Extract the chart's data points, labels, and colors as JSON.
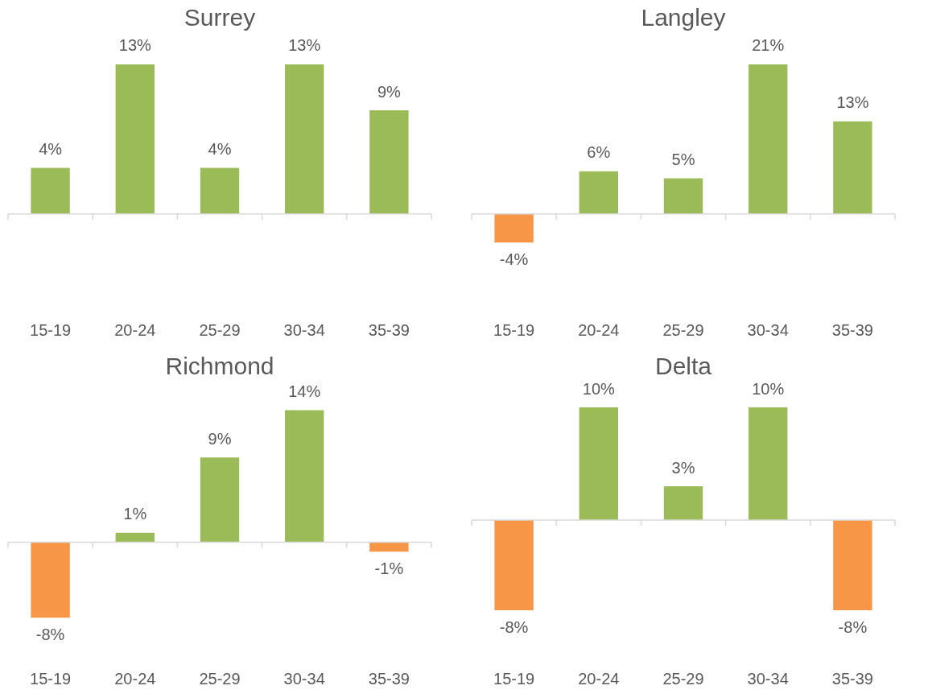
{
  "chart_data": [
    {
      "type": "bar",
      "title": "Surrey",
      "categories": [
        "15-19",
        "20-24",
        "25-29",
        "30-34",
        "35-39"
      ],
      "values": [
        4,
        13,
        4,
        13,
        9
      ],
      "colors": [
        "#9bbb59",
        "#9bbb59",
        "#9bbb59",
        "#9bbb59",
        "#9bbb59"
      ],
      "value_labels": [
        "4%",
        "13%",
        "4%",
        "13%",
        "9%"
      ],
      "grid": false,
      "legend": false,
      "tick_labels": "x"
    },
    {
      "type": "bar",
      "title": "Langley",
      "categories": [
        "15-19",
        "20-24",
        "25-29",
        "30-34",
        "35-39"
      ],
      "values": [
        -4,
        6,
        5,
        21,
        13
      ],
      "colors": [
        "#f79646",
        "#9bbb59",
        "#9bbb59",
        "#9bbb59",
        "#9bbb59"
      ],
      "value_labels": [
        "-4%",
        "6%",
        "5%",
        "21%",
        "13%"
      ],
      "grid": false,
      "legend": false,
      "tick_labels": "x"
    },
    {
      "type": "bar",
      "title": "Richmond",
      "categories": [
        "15-19",
        "20-24",
        "25-29",
        "30-34",
        "35-39"
      ],
      "values": [
        -8,
        1,
        9,
        14,
        -1
      ],
      "colors": [
        "#f79646",
        "#9bbb59",
        "#9bbb59",
        "#9bbb59",
        "#f79646"
      ],
      "value_labels": [
        "-8%",
        "1%",
        "9%",
        "14%",
        "-1%"
      ],
      "grid": false,
      "legend": false,
      "tick_labels": "x"
    },
    {
      "type": "bar",
      "title": "Delta",
      "categories": [
        "15-19",
        "20-24",
        "25-29",
        "30-34",
        "35-39"
      ],
      "values": [
        -8,
        10,
        3,
        10,
        -8
      ],
      "colors": [
        "#f79646",
        "#9bbb59",
        "#9bbb59",
        "#9bbb59",
        "#f79646"
      ],
      "value_labels": [
        "-8%",
        "10%",
        "3%",
        "10%",
        "-8%"
      ],
      "grid": false,
      "legend": false,
      "tick_labels": "x"
    }
  ]
}
